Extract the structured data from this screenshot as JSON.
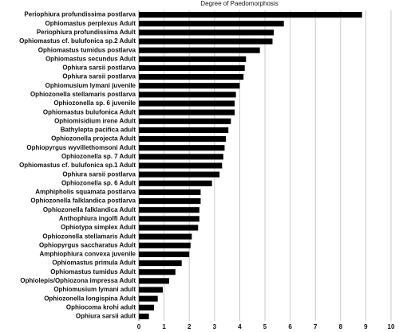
{
  "chart_data": {
    "type": "bar",
    "title": "Degree of Paedomorphosis",
    "categories": [
      "Periophiura profundissima postlarva",
      "Ophiomastus perplexus Adult",
      "Periophiura profundissima Adult",
      "Ophiomastus cf. bulufonica sp.2 Adult",
      "Ophiomastus tumidus postlarva",
      "Ophiomastus secundus Adult",
      "Ophiura sarsii postlarva",
      "Ophiura sarsii postlarva",
      "Ophiomusium lymani juvenile",
      "Ophiozonella stellamaris postlarva",
      "Ophiozonella sp. 6 juvenile",
      "Ophiomastus bulufonica Adult",
      "Ophiomisidium irene Adult",
      "Bathylepta pacifica adult",
      "Ophiozonella projecta Adult",
      "Ophiopyrgus wyvillethomsoni Adult",
      "Ophiozonella sp. 7 Adult",
      "Ophiomastus cf. bulufonica sp.1 Adult",
      "Ophiura sarsii postlarva",
      "Ophiozonella sp. 6 Adult",
      "Amphipholis squamata postlarva",
      "Ophiozonella falklandica postlarva",
      "Ophiozonella falklandica Adult",
      "Anthophiura ingolfi Adult",
      "Ophiotypa simplex Adult",
      "Ophiozonella stellamaris Adult",
      "Ophiopyrgus saccharatus Adult",
      "Amphiophiura convexa juvenile",
      "Ophiomastus primula Adult",
      "Ophiomastus tumidus Adult",
      "Ophiolepis/Ophiozona impressa Adult",
      "Ophiomusium lymani adult",
      "Ophiozonella longispina Adult",
      "Ophiocoma krohi adult",
      "Ophiura sarsii adult"
    ],
    "values": [
      8.85,
      5.75,
      5.35,
      5.3,
      4.8,
      4.25,
      4.2,
      4.15,
      4.0,
      3.85,
      3.8,
      3.8,
      3.65,
      3.55,
      3.45,
      3.4,
      3.35,
      3.3,
      3.2,
      2.9,
      2.45,
      2.45,
      2.4,
      2.4,
      2.35,
      2.1,
      2.05,
      2.0,
      1.7,
      1.45,
      1.2,
      0.95,
      0.75,
      0.6,
      0.4
    ],
    "color": "#000000",
    "xlim": [
      0,
      10
    ],
    "xticks": [
      0,
      1,
      2,
      3,
      4,
      5,
      6,
      7,
      8,
      9,
      10
    ],
    "grid": true
  }
}
